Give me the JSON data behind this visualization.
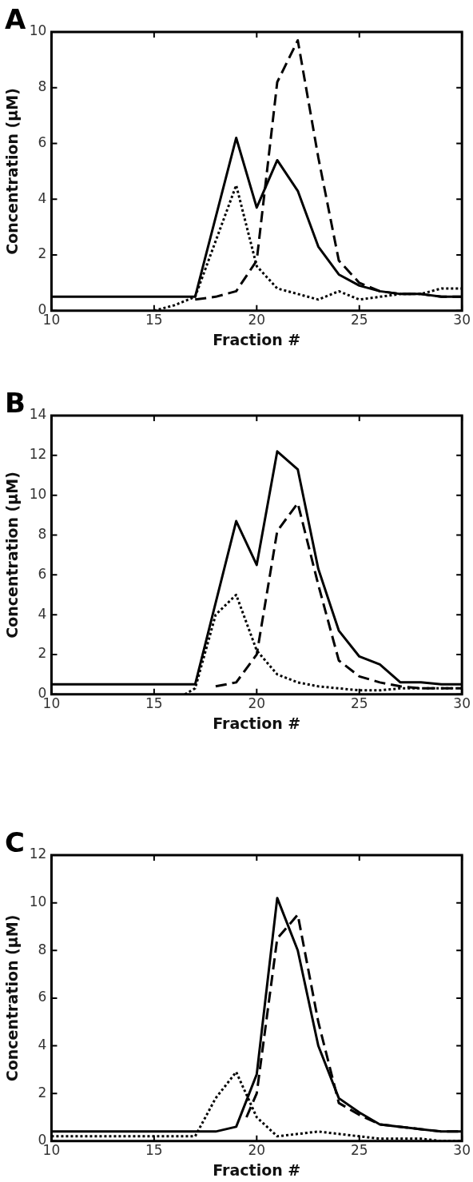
{
  "chart_data": [
    {
      "type": "line",
      "title": "A",
      "xlabel": "Fraction #",
      "ylabel": "Concentration (µM)",
      "xlim": [
        10,
        30
      ],
      "xticks": [
        10,
        15,
        20,
        25,
        30
      ],
      "ylim": [
        0,
        10
      ],
      "yticks": [
        0,
        2,
        4,
        6,
        8,
        10
      ],
      "series": [
        {
          "color": "#000000",
          "line_style": "solid",
          "x": [
            10,
            17,
            19,
            20,
            21,
            22,
            23,
            24,
            25,
            26,
            27,
            28,
            29,
            30
          ],
          "values": [
            0.5,
            0.5,
            6.2,
            3.7,
            5.4,
            4.3,
            2.3,
            1.3,
            0.9,
            0.7,
            0.6,
            0.6,
            0.5,
            0.5
          ]
        },
        {
          "color": "#000000",
          "line_style": "dashed",
          "x": [
            17,
            18,
            19,
            20,
            21,
            22,
            23,
            24,
            25,
            26,
            27,
            28,
            29,
            30
          ],
          "values": [
            0.4,
            0.5,
            0.7,
            1.8,
            8.2,
            9.7,
            5.5,
            1.8,
            1.0,
            0.7,
            0.6,
            0.6,
            0.5,
            0.5
          ]
        },
        {
          "color": "#000000",
          "line_style": "dotted",
          "x": [
            15,
            16,
            17,
            18,
            19,
            20,
            21,
            22,
            23,
            24,
            25,
            26,
            27,
            28,
            29,
            30
          ],
          "values": [
            0,
            0.2,
            0.5,
            2.5,
            4.5,
            1.6,
            0.8,
            0.6,
            0.4,
            0.7,
            0.4,
            0.5,
            0.6,
            0.6,
            0.8,
            0.8
          ]
        }
      ]
    },
    {
      "type": "line",
      "title": "B",
      "xlabel": "Fraction #",
      "ylabel": "Concentration (µM)",
      "xlim": [
        10,
        30
      ],
      "xticks": [
        10,
        15,
        20,
        25,
        30
      ],
      "ylim": [
        0,
        14
      ],
      "yticks": [
        0,
        2,
        4,
        6,
        8,
        10,
        12,
        14
      ],
      "series": [
        {
          "color": "#000000",
          "line_style": "solid",
          "x": [
            10,
            17,
            19,
            20,
            21,
            22,
            23,
            24,
            25,
            26,
            27,
            28,
            29,
            30
          ],
          "values": [
            0.5,
            0.5,
            8.7,
            6.5,
            12.2,
            11.3,
            6.3,
            3.2,
            1.9,
            1.5,
            0.6,
            0.6,
            0.5,
            0.5
          ]
        },
        {
          "color": "#000000",
          "line_style": "dashed",
          "x": [
            18,
            19,
            20,
            21,
            22,
            23,
            24,
            25,
            26,
            27,
            28,
            29,
            30
          ],
          "values": [
            0.4,
            0.6,
            2.0,
            8.2,
            9.6,
            5.5,
            1.7,
            0.9,
            0.6,
            0.4,
            0.3,
            0.3,
            0.3
          ]
        },
        {
          "color": "#000000",
          "line_style": "dotted",
          "x": [
            16.5,
            17,
            18,
            19,
            20,
            21,
            22,
            23,
            24,
            25,
            26,
            27,
            28,
            29,
            30
          ],
          "values": [
            0,
            0.3,
            4.0,
            5.0,
            2.2,
            1.0,
            0.6,
            0.4,
            0.3,
            0.2,
            0.2,
            0.3,
            0.3,
            0.3,
            0.3
          ]
        }
      ]
    },
    {
      "type": "line",
      "title": "C",
      "xlabel": "Fraction #",
      "ylabel": "Concentration (µM)",
      "xlim": [
        10,
        30
      ],
      "xticks": [
        10,
        15,
        20,
        25,
        30
      ],
      "ylim": [
        0,
        12
      ],
      "yticks": [
        0,
        2,
        4,
        6,
        8,
        10,
        12
      ],
      "series": [
        {
          "color": "#000000",
          "line_style": "solid",
          "x": [
            10,
            17,
            18,
            19,
            20,
            21,
            22,
            23,
            24,
            25,
            26,
            27,
            28,
            29,
            30
          ],
          "values": [
            0.4,
            0.4,
            0.4,
            0.6,
            2.8,
            10.2,
            8.0,
            4.0,
            1.8,
            1.2,
            0.7,
            0.6,
            0.5,
            0.4,
            0.4
          ]
        },
        {
          "color": "#000000",
          "line_style": "dashed",
          "x": [
            19.5,
            20,
            21,
            22,
            23,
            24,
            25,
            26,
            27,
            28,
            29,
            30
          ],
          "values": [
            1.0,
            2.0,
            8.5,
            9.5,
            5.0,
            1.6,
            1.1,
            0.7,
            0.6,
            0.5,
            0.4,
            0.4
          ]
        },
        {
          "color": "#000000",
          "line_style": "dotted",
          "x": [
            10,
            17,
            18,
            19,
            20,
            21,
            22,
            23,
            24,
            25,
            26,
            27,
            28,
            29,
            30
          ],
          "values": [
            0.2,
            0.2,
            1.8,
            2.9,
            1.0,
            0.2,
            0.3,
            0.4,
            0.3,
            0.2,
            0.1,
            0.1,
            0.1,
            0.0,
            0.0
          ]
        }
      ]
    }
  ]
}
